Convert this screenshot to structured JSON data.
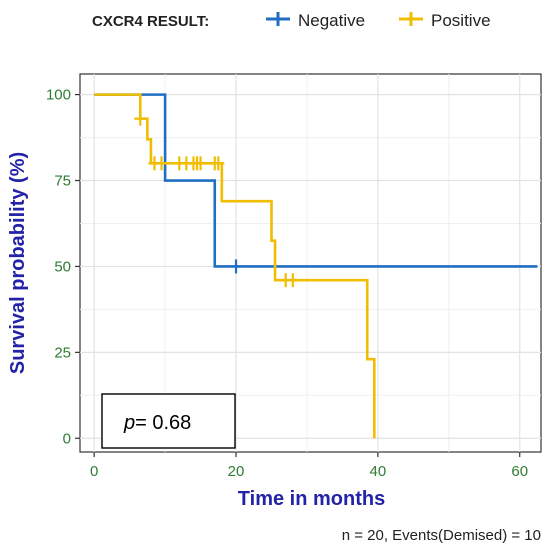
{
  "chart_data": {
    "type": "line",
    "subtype": "kaplan-meier step curve",
    "title": "",
    "xlabel": "Time in months",
    "ylabel": "Survival probability (%)",
    "xlim": [
      -2,
      63
    ],
    "ylim": [
      -4,
      106
    ],
    "x_ticks": [
      0,
      20,
      40,
      60
    ],
    "y_ticks": [
      0,
      25,
      50,
      75,
      100
    ],
    "grid": true,
    "legend": {
      "title": "CXCR4 RESULT:",
      "placement": "top"
    },
    "series": [
      {
        "name": "Negative",
        "color": "#1f6fc2",
        "steps": [
          [
            0,
            100
          ],
          [
            10,
            75
          ],
          [
            17,
            50
          ],
          [
            62.5,
            50
          ]
        ],
        "censored": [
          [
            20,
            50
          ]
        ]
      },
      {
        "name": "Positive",
        "color": "#f0bd00",
        "steps": [
          [
            0,
            100
          ],
          [
            6.5,
            93
          ],
          [
            7.5,
            87
          ],
          [
            8,
            80
          ],
          [
            18,
            69
          ],
          [
            25,
            57.5
          ],
          [
            25.5,
            46
          ],
          [
            38.5,
            23
          ],
          [
            39.5,
            0
          ]
        ],
        "censored": [
          [
            6.5,
            93
          ],
          [
            8.5,
            80
          ],
          [
            9.5,
            80
          ],
          [
            12,
            80
          ],
          [
            13,
            80
          ],
          [
            14,
            80
          ],
          [
            14.5,
            80
          ],
          [
            15,
            80
          ],
          [
            17,
            80
          ],
          [
            17.5,
            80
          ],
          [
            27,
            46
          ],
          [
            28,
            46
          ]
        ]
      }
    ],
    "annotations": {
      "p_label": "p",
      "p_value": "= 0.68"
    },
    "footnote": "n = 20, Events(Demised) = 10"
  }
}
